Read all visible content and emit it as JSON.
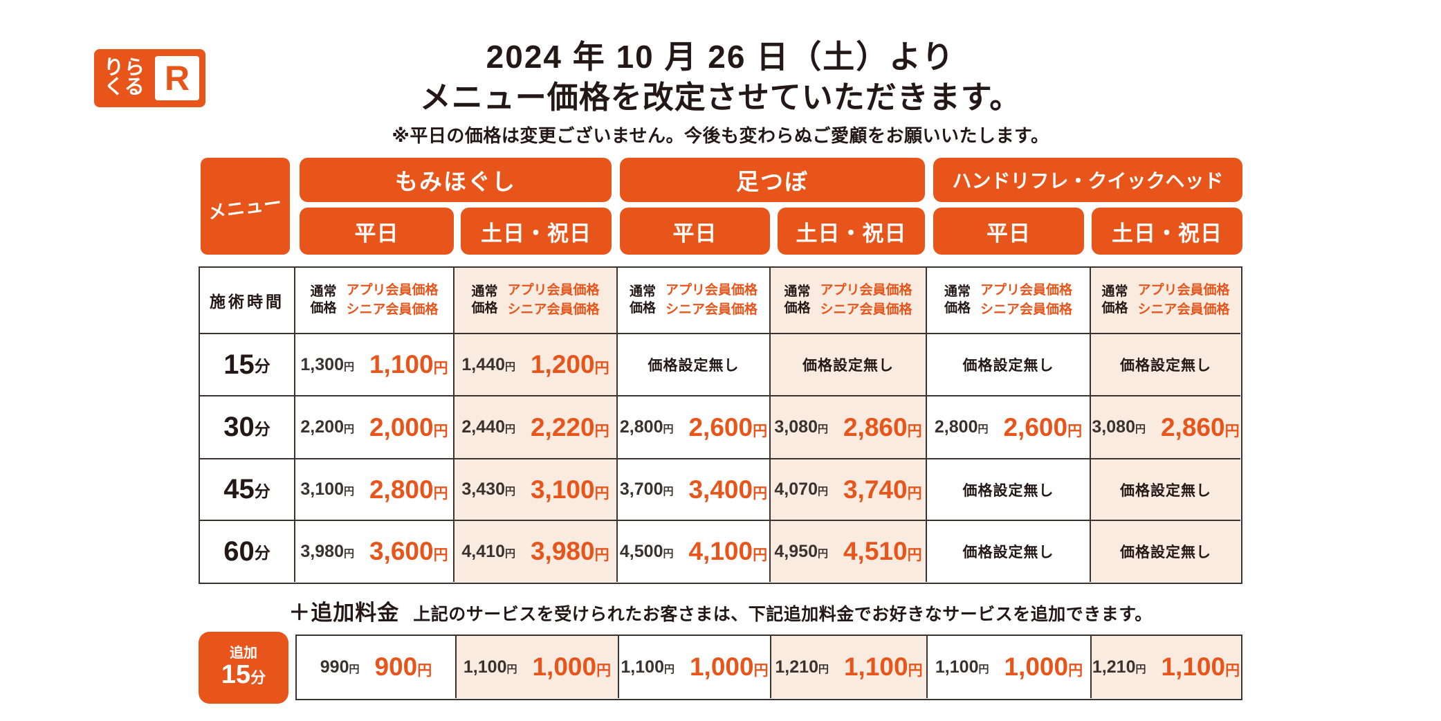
{
  "brand": {
    "logo_line1": "りら",
    "logo_line2": "くる",
    "logo_r": "R",
    "orange": "#e7551b",
    "cream": "#faebe0",
    "text_dark": "#231815"
  },
  "title": {
    "line1": "2024 年 10 月 26 日（土）より",
    "line2": "メニュー価格を改定させていただきます。",
    "note": "※平日の価格は変更ございません。今後も変わらぬご愛顧をお願いいたします。"
  },
  "table": {
    "menu_label": "メニュー",
    "groups": [
      {
        "label": "もみほぐし"
      },
      {
        "label": "足つぼ"
      },
      {
        "label": "ハンドリフレ・クイックヘッド"
      }
    ],
    "day_headers": [
      "平日",
      "土日・祝日",
      "平日",
      "土日・祝日",
      "平日",
      "土日・祝日"
    ],
    "time_header": "施術時間",
    "price_header": {
      "normal_l1": "通常",
      "normal_l2": "価格",
      "member_l1": "アプリ会員価格",
      "member_l2": "シニア会員価格"
    },
    "yen": "円",
    "no_price": "価格設定無し",
    "rows": [
      {
        "time": "15",
        "unit": "分",
        "cells": [
          {
            "normal": "1,300",
            "member": "1,100"
          },
          {
            "normal": "1,440",
            "member": "1,200"
          },
          {
            "text": "価格設定無し"
          },
          {
            "text": "価格設定無し"
          },
          {
            "text": "価格設定無し"
          },
          {
            "text": "価格設定無し"
          }
        ]
      },
      {
        "time": "30",
        "unit": "分",
        "cells": [
          {
            "normal": "2,200",
            "member": "2,000"
          },
          {
            "normal": "2,440",
            "member": "2,220"
          },
          {
            "normal": "2,800",
            "member": "2,600"
          },
          {
            "normal": "3,080",
            "member": "2,860"
          },
          {
            "normal": "2,800",
            "member": "2,600"
          },
          {
            "normal": "3,080",
            "member": "2,860"
          }
        ]
      },
      {
        "time": "45",
        "unit": "分",
        "cells": [
          {
            "normal": "3,100",
            "member": "2,800"
          },
          {
            "normal": "3,430",
            "member": "3,100"
          },
          {
            "normal": "3,700",
            "member": "3,400"
          },
          {
            "normal": "4,070",
            "member": "3,740"
          },
          {
            "text": "価格設定無し"
          },
          {
            "text": "価格設定無し"
          }
        ]
      },
      {
        "time": "60",
        "unit": "分",
        "cells": [
          {
            "normal": "3,980",
            "member": "3,600"
          },
          {
            "normal": "4,410",
            "member": "3,980"
          },
          {
            "normal": "4,500",
            "member": "4,100"
          },
          {
            "normal": "4,950",
            "member": "4,510"
          },
          {
            "text": "価格設定無し"
          },
          {
            "text": "価格設定無し"
          }
        ]
      }
    ]
  },
  "addon": {
    "heading_strong": "＋追加料金",
    "heading_rest": "上記のサービスを受けられたお客さまは、下記追加料金でお好きなサービスを追加できます。",
    "time_small": "追加",
    "time_big": "15",
    "time_unit": "分",
    "cells": [
      {
        "normal": "990",
        "member": "900"
      },
      {
        "normal": "1,100",
        "member": "1,000"
      },
      {
        "normal": "1,100",
        "member": "1,000"
      },
      {
        "normal": "1,210",
        "member": "1,100"
      },
      {
        "normal": "1,100",
        "member": "1,000"
      },
      {
        "normal": "1,210",
        "member": "1,100"
      }
    ]
  }
}
